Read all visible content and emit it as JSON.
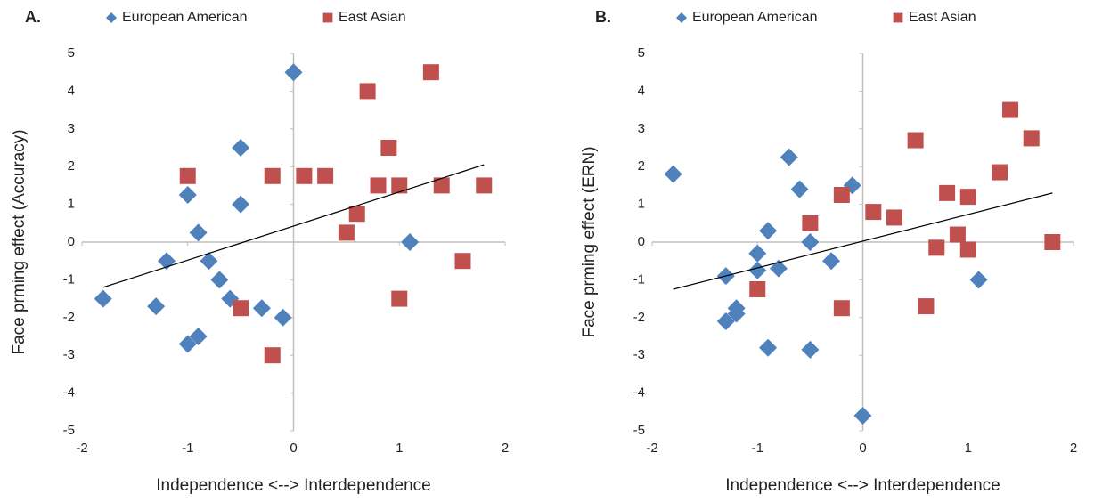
{
  "chart_data": [
    {
      "type": "scatter",
      "title": "A.",
      "xlabel": "Independence <--> Interdependence",
      "ylabel": "Face prming effect (Accuracy)",
      "xlim": [
        -2,
        2
      ],
      "xticks": [
        -2,
        -1,
        0,
        1,
        2
      ],
      "ylim": [
        -5,
        5
      ],
      "yticks": [
        -5,
        -4,
        -3,
        -2,
        -1,
        0,
        1,
        2,
        3,
        4,
        5
      ],
      "series": [
        {
          "name": "European American",
          "color": "#4f81bd",
          "marker": "diamond",
          "x": [
            -1.8,
            -1.3,
            -1.2,
            -1.0,
            -0.9,
            -0.8,
            -0.7,
            -0.6,
            -0.5,
            -0.5,
            -0.3,
            -0.1,
            0,
            -1.0,
            -0.9,
            1.1
          ],
          "y": [
            -1.5,
            -1.7,
            -0.5,
            1.25,
            0.25,
            -0.5,
            -1.0,
            -1.5,
            2.5,
            1.0,
            -1.75,
            -2.0,
            4.5,
            -2.7,
            -2.5,
            0.0
          ]
        },
        {
          "name": "East Asian",
          "color": "#c0504d",
          "marker": "square",
          "x": [
            -1.0,
            -0.5,
            -0.2,
            -0.2,
            0.1,
            0.3,
            0.5,
            0.6,
            0.7,
            0.8,
            0.9,
            1.0,
            1.0,
            1.3,
            1.4,
            1.6,
            1.8
          ],
          "y": [
            1.75,
            -1.75,
            1.75,
            -3.0,
            1.75,
            1.75,
            0.25,
            0.75,
            4.0,
            1.5,
            2.5,
            1.5,
            -1.5,
            4.5,
            1.5,
            -0.5,
            1.5
          ]
        }
      ],
      "trendline": {
        "x": [
          -1.8,
          1.8
        ],
        "y": [
          -1.2,
          2.05
        ]
      }
    },
    {
      "type": "scatter",
      "title": "B.",
      "xlabel": "Independence <--> Interdependence",
      "ylabel": "Face prming effect (ERN)",
      "xlim": [
        -2,
        2
      ],
      "xticks": [
        -2,
        -1,
        0,
        1,
        2
      ],
      "ylim": [
        -5,
        5
      ],
      "yticks": [
        -5,
        -4,
        -3,
        -2,
        -1,
        0,
        1,
        2,
        3,
        4,
        5
      ],
      "series": [
        {
          "name": "European American",
          "color": "#4f81bd",
          "marker": "diamond",
          "x": [
            -1.8,
            -1.3,
            -1.3,
            -1.2,
            -1.2,
            -1.0,
            -1.0,
            -0.9,
            -0.9,
            -0.8,
            -0.7,
            -0.6,
            -0.5,
            -0.5,
            -0.3,
            -0.1,
            0,
            1.1
          ],
          "y": [
            1.8,
            -0.9,
            -2.1,
            -1.75,
            -1.9,
            -0.3,
            -0.75,
            0.3,
            -2.8,
            -0.7,
            2.25,
            1.4,
            0.0,
            -2.85,
            -0.5,
            1.5,
            -4.6,
            -1.0
          ]
        },
        {
          "name": "East Asian",
          "color": "#c0504d",
          "marker": "square",
          "x": [
            -1.0,
            -0.5,
            -0.2,
            -0.2,
            0.1,
            0.3,
            0.5,
            0.6,
            0.7,
            0.8,
            0.9,
            1.0,
            1.0,
            1.3,
            1.4,
            1.6,
            1.8
          ],
          "y": [
            -1.25,
            0.5,
            1.25,
            -1.75,
            0.8,
            0.65,
            2.7,
            -1.7,
            -0.15,
            1.3,
            0.2,
            1.2,
            -0.2,
            1.85,
            3.5,
            2.75,
            0.0
          ]
        }
      ],
      "trendline": {
        "x": [
          -1.8,
          1.8
        ],
        "y": [
          -1.25,
          1.3
        ]
      }
    }
  ]
}
